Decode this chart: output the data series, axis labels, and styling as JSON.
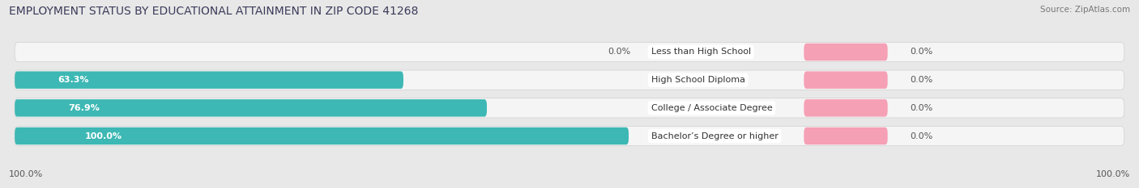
{
  "title": "EMPLOYMENT STATUS BY EDUCATIONAL ATTAINMENT IN ZIP CODE 41268",
  "source": "Source: ZipAtlas.com",
  "categories": [
    "Less than High School",
    "High School Diploma",
    "College / Associate Degree",
    "Bachelor’s Degree or higher"
  ],
  "in_labor_force": [
    0.0,
    63.3,
    76.9,
    100.0
  ],
  "unemployed": [
    0.0,
    0.0,
    0.0,
    0.0
  ],
  "teal_color": "#3db8b4",
  "pink_color": "#f5a0b5",
  "bg_color": "#e8e8e8",
  "bar_bg_color": "#f5f5f5",
  "title_fontsize": 10,
  "source_fontsize": 7.5,
  "bar_label_fontsize": 8,
  "category_fontsize": 8,
  "legend_fontsize": 8.5,
  "axis_label_fontsize": 8,
  "max_val": 100.0,
  "pink_bar_width": 8.0,
  "left_axis_label": "100.0%",
  "right_axis_label": "100.0%"
}
